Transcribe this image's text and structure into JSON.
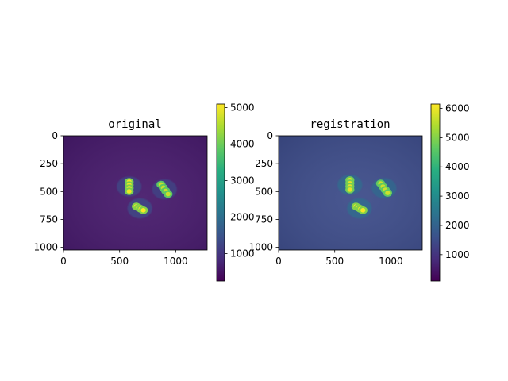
{
  "chart_data": [
    {
      "type": "heatmap",
      "title": "original",
      "x_ticks": [
        "0",
        "500",
        "1000"
      ],
      "x_tick_values": [
        0,
        500,
        1000
      ],
      "y_ticks": [
        "0",
        "250",
        "500",
        "750",
        "1000"
      ],
      "y_tick_values": [
        0,
        250,
        500,
        750,
        1000
      ],
      "xlim": [
        0,
        1280
      ],
      "ylim": [
        1024,
        0
      ],
      "colormap": "viridis",
      "colorbar": {
        "range": [
          250,
          5100
        ],
        "ticks": [
          "1000",
          "2000",
          "3000",
          "4000",
          "5000"
        ],
        "tick_values": [
          1000,
          2000,
          3000,
          4000,
          5000
        ]
      },
      "background_value": 600,
      "blobs": [
        {
          "x": 585,
          "y": 455,
          "peak": 5000
        },
        {
          "x": 900,
          "y": 480,
          "peak": 4700
        },
        {
          "x": 680,
          "y": 650,
          "peak": 5100
        }
      ]
    },
    {
      "type": "heatmap",
      "title": "registration",
      "x_ticks": [
        "0",
        "500",
        "1000"
      ],
      "x_tick_values": [
        0,
        500,
        1000
      ],
      "y_ticks": [
        "0",
        "250",
        "500",
        "750",
        "1000"
      ],
      "y_tick_values": [
        0,
        250,
        500,
        750,
        1000
      ],
      "xlim": [
        0,
        1280
      ],
      "ylim": [
        1024,
        0
      ],
      "colormap": "viridis",
      "colorbar": {
        "range": [
          100,
          6150
        ],
        "ticks": [
          "1000",
          "2000",
          "3000",
          "4000",
          "5000",
          "6000"
        ],
        "tick_values": [
          1000,
          2000,
          3000,
          4000,
          5000,
          6000
        ]
      },
      "background_value": 1500,
      "blobs": [
        {
          "x": 635,
          "y": 440,
          "peak": 5900
        },
        {
          "x": 940,
          "y": 470,
          "peak": 5700
        },
        {
          "x": 720,
          "y": 650,
          "peak": 6100
        }
      ]
    }
  ]
}
